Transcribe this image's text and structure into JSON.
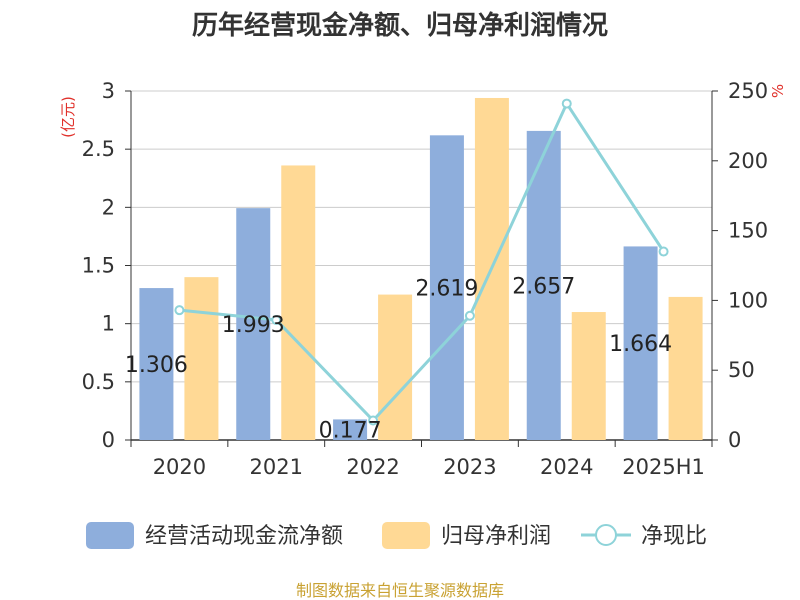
{
  "title": "历年经营现金净额、归母净利润情况",
  "source": "制图数据来自恒生聚源数据库",
  "colors": {
    "bar1": "#8eaedc",
    "bar2": "#ffd995",
    "line": "#8ed3d9",
    "unit": "#e0302a",
    "source": "#c9a233"
  },
  "chart_data": {
    "type": "bar",
    "categories": [
      "2020",
      "2021",
      "2022",
      "2023",
      "2024",
      "2025H1"
    ],
    "left_axis": {
      "unit": "(亿元)",
      "ylim": [
        0,
        3
      ],
      "ticks": [
        "0",
        "0.5",
        "1",
        "1.5",
        "2",
        "2.5",
        "3"
      ]
    },
    "right_axis": {
      "unit": "%",
      "ylim": [
        0,
        250
      ],
      "ticks": [
        "0",
        "50",
        "100",
        "150",
        "200",
        "250"
      ]
    },
    "grid": true,
    "legend_position": "bottom",
    "series": [
      {
        "name": "经营活动现金流净额",
        "type": "bar",
        "axis": "left",
        "values": [
          1.306,
          1.993,
          0.177,
          2.619,
          2.657,
          1.664
        ],
        "labels": [
          "1.306",
          "1.993",
          "0.177",
          "2.619",
          "2.657",
          "1.664"
        ]
      },
      {
        "name": "归母净利润",
        "type": "bar",
        "axis": "left",
        "values": [
          1.4,
          2.36,
          1.25,
          2.94,
          1.1,
          1.23
        ]
      },
      {
        "name": "净现比",
        "type": "line",
        "axis": "right",
        "values": [
          93,
          86,
          14,
          89,
          241,
          135
        ]
      }
    ]
  }
}
